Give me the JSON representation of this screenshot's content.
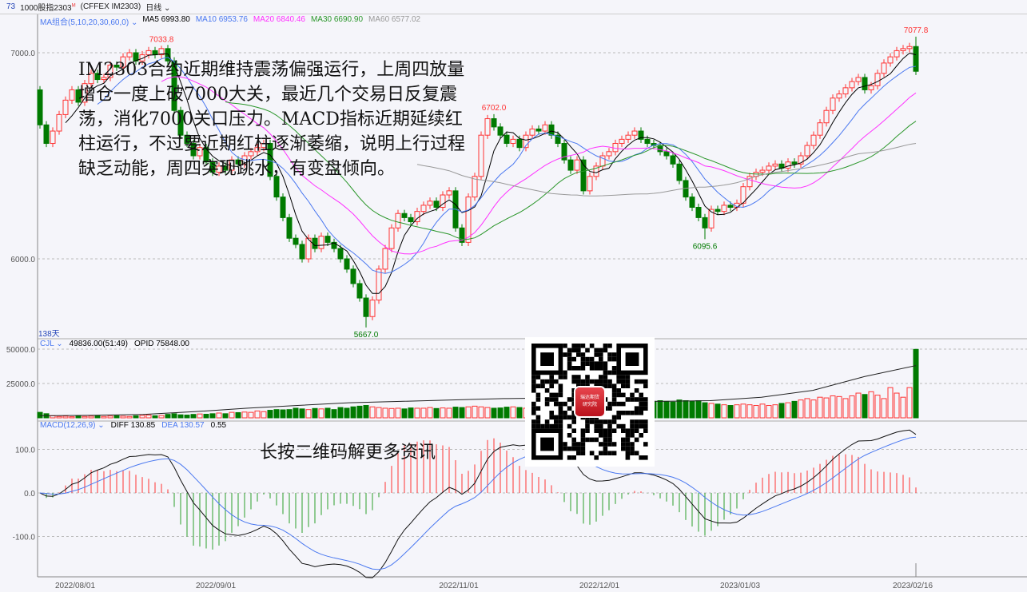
{
  "header": {
    "code": "73",
    "name": "1000股指2303",
    "badge": "M",
    "exchange": "(CFFEX IM2303)",
    "period": "日线"
  },
  "ma_legend": {
    "label": "MA组合(5,10,20,30,60,0)",
    "items": [
      {
        "name": "MA5",
        "value": "6993.80",
        "color": "#000000"
      },
      {
        "name": "MA10",
        "value": "6953.76",
        "color": "#4a78f0"
      },
      {
        "name": "MA20",
        "value": "6840.46",
        "color": "#ff30ff"
      },
      {
        "name": "MA30",
        "value": "6690.90",
        "color": "#2a962a"
      },
      {
        "name": "MA60",
        "value": "6577.02",
        "color": "#999999"
      }
    ]
  },
  "vol_legend": {
    "label": "CJL",
    "value": "49836.00(51:49)",
    "opid": "OPID 75848.00"
  },
  "macd_legend": {
    "label": "MACD(12,26,9)",
    "diff": "DIFF 130.85",
    "dea": "DEA 130.57",
    "macd": "0.55"
  },
  "days_label": "138天",
  "annotation": "IM2303合约近期维持震荡偏强运行，上周四放量增仓一度上破7000大关，最近几个交易日反复震荡，消化7000关口压力。MACD指标近期延续红柱运行，不过要近期红柱逐渐萎缩，说明上行过程缺乏动能，周四突现跳水，有变盘倾向。",
  "qr": {
    "logo_line1": "瑞达期货",
    "logo_line2": "研究院",
    "caption": "长按二维码解更多资讯"
  },
  "colors": {
    "up": "#ff3333",
    "down": "#007a00",
    "background": "#f5f5fa"
  },
  "chart_data": [
    {
      "type": "candlestick",
      "panel": "price",
      "yticks": [
        "7000.0",
        "6000.0"
      ],
      "ylim": [
        5620,
        7190
      ],
      "grid": true,
      "annotations": [
        {
          "label": "7033.8",
          "index": 19,
          "kind": "high"
        },
        {
          "label": "6702.0",
          "index": 71,
          "kind": "high"
        },
        {
          "label": "6095.6",
          "index": 104,
          "kind": "low"
        },
        {
          "label": "5667.0",
          "index": 51,
          "kind": "low"
        },
        {
          "label": "7077.8",
          "index": 137,
          "kind": "high"
        }
      ],
      "first_open": 6820,
      "close": [
        6650,
        6560,
        6620,
        6700,
        6770,
        6820,
        6760,
        6850,
        6900,
        6870,
        6880,
        6940,
        6930,
        6980,
        7000,
        6960,
        6990,
        7010,
        6990,
        7020,
        6960,
        6720,
        6600,
        6560,
        6500,
        6540,
        6470,
        6420,
        6450,
        6430,
        6480,
        6460,
        6500,
        6520,
        6540,
        6560,
        6400,
        6300,
        6200,
        6100,
        6070,
        6000,
        6100,
        6050,
        6110,
        6080,
        6050,
        6000,
        5950,
        5880,
        5810,
        5720,
        5800,
        5950,
        6050,
        6150,
        6220,
        6200,
        6180,
        6230,
        6260,
        6280,
        6250,
        6310,
        6330,
        6150,
        6080,
        6300,
        6400,
        6600,
        6680,
        6640,
        6600,
        6560,
        6580,
        6540,
        6600,
        6630,
        6620,
        6650,
        6600,
        6560,
        6480,
        6430,
        6480,
        6330,
        6400,
        6450,
        6500,
        6520,
        6560,
        6580,
        6600,
        6620,
        6580,
        6560,
        6550,
        6520,
        6500,
        6460,
        6380,
        6300,
        6250,
        6200,
        6150,
        6240,
        6230,
        6260,
        6250,
        6270,
        6350,
        6400,
        6420,
        6430,
        6450,
        6460,
        6440,
        6470,
        6460,
        6500,
        6550,
        6600,
        6660,
        6720,
        6780,
        6800,
        6830,
        6860,
        6880,
        6820,
        6840,
        6900,
        6950,
        6980,
        7010,
        7020,
        7030,
        6910
      ],
      "moving_averages": [
        5,
        10,
        20,
        30,
        60
      ]
    },
    {
      "type": "bar",
      "panel": "volume",
      "yticks": [
        "50000.0",
        "25000.0"
      ],
      "ylim": [
        0,
        50000
      ],
      "volume": [
        4000,
        3000,
        1500,
        1000,
        1200,
        800,
        1500,
        1000,
        1200,
        1500,
        1000,
        1300,
        1500,
        1200,
        1000,
        1500,
        1800,
        2000,
        1500,
        1700,
        2500,
        3000,
        2200,
        2000,
        2500,
        2800,
        2600,
        3000,
        3500,
        3000,
        4000,
        3800,
        4200,
        4000,
        5000,
        4500,
        5500,
        6000,
        5800,
        6000,
        7000,
        6500,
        6000,
        6800,
        6500,
        7000,
        6000,
        7500,
        7000,
        8000,
        8500,
        9000,
        8000,
        7500,
        7000,
        6800,
        7000,
        6500,
        7200,
        7000,
        7000,
        7500,
        6800,
        7200,
        7000,
        7800,
        7500,
        8000,
        8500,
        8000,
        7500,
        7000,
        7200,
        7800,
        8000,
        7500,
        7000,
        7200,
        7600,
        7800,
        7500,
        8000,
        8200,
        8500,
        9000,
        9500,
        9000,
        8800,
        9500,
        10000,
        10500,
        10000,
        9800,
        11000,
        11500,
        11000,
        12000,
        12500,
        12000,
        11500,
        13000,
        12500,
        12000,
        12500,
        11000,
        10500,
        10000,
        9500,
        9000,
        9500,
        10000,
        9500,
        9000,
        10000,
        9000,
        9500,
        10500,
        11000,
        12000,
        13000,
        14000,
        13000,
        15000,
        14500,
        16000,
        15500,
        14000,
        16000,
        18000,
        17000,
        19000,
        16500,
        14000,
        22000,
        18000,
        15000,
        22000,
        49836
      ],
      "opid_line": [
        1500,
        1800,
        2500,
        4500,
        7000,
        9000,
        11000,
        12000,
        13000,
        14000,
        14500,
        13000,
        12000,
        12500,
        15000,
        20000,
        30000,
        38000
      ]
    },
    {
      "type": "line",
      "panel": "macd",
      "yticks": [
        "100.0",
        "0.0",
        "-100.0"
      ],
      "ylim": [
        -190,
        150
      ],
      "params": [
        12,
        26,
        9
      ]
    }
  ],
  "xticks": [
    {
      "label": "2022/08/01",
      "index": 6
    },
    {
      "label": "2022/09/01",
      "index": 28
    },
    {
      "label": "2022/11/01",
      "index": 66
    },
    {
      "label": "2022/12/01",
      "index": 88
    },
    {
      "label": "2023/01/03",
      "index": 110
    },
    {
      "label": "2023/02/16",
      "index": 137
    }
  ]
}
